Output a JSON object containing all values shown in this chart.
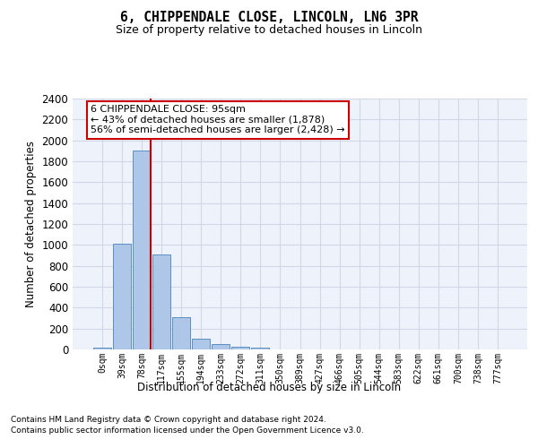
{
  "title1": "6, CHIPPENDALE CLOSE, LINCOLN, LN6 3PR",
  "title2": "Size of property relative to detached houses in Lincoln",
  "xlabel": "Distribution of detached houses by size in Lincoln",
  "ylabel": "Number of detached properties",
  "bin_labels": [
    "0sqm",
    "39sqm",
    "78sqm",
    "117sqm",
    "155sqm",
    "194sqm",
    "233sqm",
    "272sqm",
    "311sqm",
    "350sqm",
    "389sqm",
    "427sqm",
    "466sqm",
    "505sqm",
    "544sqm",
    "583sqm",
    "622sqm",
    "661sqm",
    "700sqm",
    "738sqm",
    "777sqm"
  ],
  "bar_values": [
    20,
    1010,
    1900,
    910,
    310,
    105,
    55,
    30,
    18,
    0,
    0,
    0,
    0,
    0,
    0,
    0,
    0,
    0,
    0,
    0,
    0
  ],
  "bar_color": "#aec6e8",
  "bar_edge_color": "#5a8fc0",
  "property_line_x": 2.43,
  "annotation_text": "6 CHIPPENDALE CLOSE: 95sqm\n← 43% of detached houses are smaller (1,878)\n56% of semi-detached houses are larger (2,428) →",
  "annotation_box_color": "#ffffff",
  "annotation_box_edge_color": "#cc0000",
  "vline_color": "#cc0000",
  "grid_color": "#d0d8e8",
  "bg_color": "#eef2fa",
  "ylim": [
    0,
    2400
  ],
  "yticks": [
    0,
    200,
    400,
    600,
    800,
    1000,
    1200,
    1400,
    1600,
    1800,
    2000,
    2200,
    2400
  ],
  "footnote1": "Contains HM Land Registry data © Crown copyright and database right 2024.",
  "footnote2": "Contains public sector information licensed under the Open Government Licence v3.0."
}
